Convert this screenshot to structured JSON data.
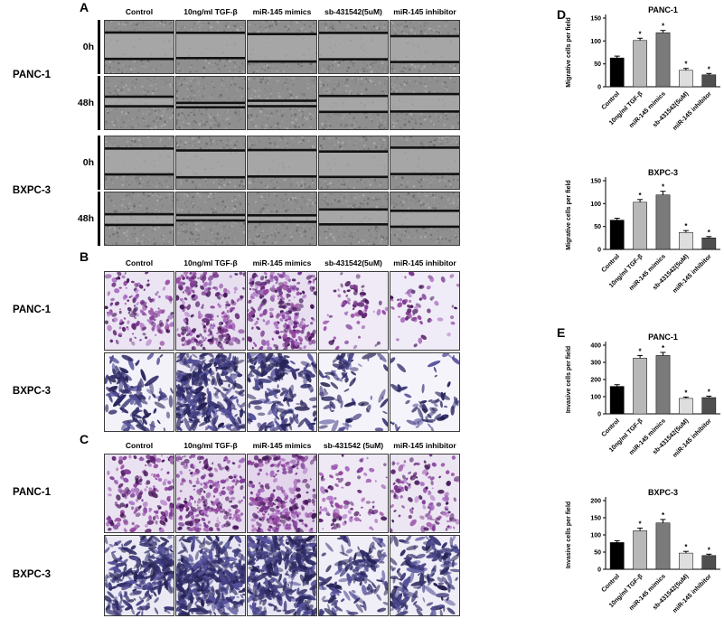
{
  "panels": {
    "A": {
      "label": "A",
      "col_headers": [
        "Control",
        "10ng/ml TGF-β",
        "miR-145 mimics",
        "sb-431542(5uM)",
        "miR-145 inhibitor"
      ],
      "groups": [
        {
          "cell_line": "PANC-1",
          "rows": [
            {
              "time": "0h",
              "gaps": [
                0.5,
                0.48,
                0.52,
                0.5,
                0.49
              ]
            },
            {
              "time": "48h",
              "gaps": [
                0.18,
                0.08,
                0.1,
                0.3,
                0.33
              ]
            }
          ]
        },
        {
          "cell_line": "BXPC-3",
          "rows": [
            {
              "time": "0h",
              "gaps": [
                0.49,
                0.51,
                0.5,
                0.48,
                0.5
              ]
            },
            {
              "time": "48h",
              "gaps": [
                0.2,
                0.1,
                0.12,
                0.28,
                0.3
              ]
            }
          ]
        }
      ]
    },
    "B": {
      "label": "B",
      "col_headers": [
        "Control",
        "10ng/ml TGF-β",
        "miR-145 mimics",
        "sb-431542(5uM)",
        "miR-145 inhibitor"
      ],
      "rows": [
        {
          "cell_line": "PANC-1",
          "tiles": [
            {
              "seed": 11,
              "density": 150,
              "palette": "purple",
              "shape": "round",
              "bg": "#ebe5f3"
            },
            {
              "seed": 12,
              "density": 240,
              "palette": "purple",
              "shape": "round",
              "bg": "#e7dff0"
            },
            {
              "seed": 13,
              "density": 250,
              "palette": "purple",
              "shape": "round",
              "bg": "#e7def0"
            },
            {
              "seed": 14,
              "density": 70,
              "palette": "purple",
              "shape": "round",
              "bg": "#efeaf6"
            },
            {
              "seed": 15,
              "density": 60,
              "palette": "purple",
              "shape": "round",
              "bg": "#f0ecf7"
            }
          ]
        },
        {
          "cell_line": "BXPC-3",
          "tiles": [
            {
              "seed": 21,
              "density": 110,
              "palette": "indigo",
              "shape": "spindle",
              "bg": "#f4f2f9"
            },
            {
              "seed": 22,
              "density": 300,
              "palette": "indigo",
              "shape": "spindle",
              "bg": "#eeeaf5"
            },
            {
              "seed": 23,
              "density": 170,
              "palette": "indigo",
              "shape": "spindle",
              "bg": "#f2eff8"
            },
            {
              "seed": 24,
              "density": 80,
              "palette": "indigo",
              "shape": "spindle",
              "bg": "#f5f3fa"
            },
            {
              "seed": 25,
              "density": 60,
              "palette": "indigo",
              "shape": "spindle",
              "bg": "#f6f4fb"
            }
          ]
        }
      ]
    },
    "C": {
      "label": "C",
      "col_headers": [
        "Control",
        "10ng/ml TGF-β",
        "miR-145 mimics",
        "sb-431542 (5uM)",
        "miR-145 inhibitor"
      ],
      "rows": [
        {
          "cell_line": "PANC-1",
          "tiles": [
            {
              "seed": 31,
              "density": 180,
              "palette": "purple",
              "shape": "round",
              "bg": "#eae2f1"
            },
            {
              "seed": 32,
              "density": 240,
              "palette": "purple",
              "shape": "round",
              "bg": "#e6dcee"
            },
            {
              "seed": 33,
              "density": 270,
              "palette": "purple",
              "shape": "round",
              "bg": "#e3d6ec"
            },
            {
              "seed": 34,
              "density": 100,
              "palette": "purple",
              "shape": "round",
              "bg": "#efe9f5"
            },
            {
              "seed": 35,
              "density": 130,
              "palette": "purple",
              "shape": "round",
              "bg": "#ece6f3"
            }
          ]
        },
        {
          "cell_line": "BXPC-3",
          "tiles": [
            {
              "seed": 41,
              "density": 230,
              "palette": "indigo",
              "shape": "spindle",
              "bg": "#ebe9f4"
            },
            {
              "seed": 42,
              "density": 320,
              "palette": "indigo",
              "shape": "spindle",
              "bg": "#e8e6f2"
            },
            {
              "seed": 43,
              "density": 330,
              "palette": "indigo",
              "shape": "spindle",
              "bg": "#e7e5f1"
            },
            {
              "seed": 44,
              "density": 140,
              "palette": "indigo",
              "shape": "spindle",
              "bg": "#f0eef7"
            },
            {
              "seed": 45,
              "density": 160,
              "palette": "indigo",
              "shape": "spindle",
              "bg": "#efedf6"
            }
          ]
        }
      ]
    },
    "D": {
      "label": "D"
    },
    "E": {
      "label": "E"
    }
  },
  "chart_data": [
    {
      "type": "bar",
      "title": "PANC-1",
      "ylabel": "Migrative cells per field",
      "categories": [
        "Control",
        "10ng/ml TGF-β",
        "miR-145 mimics",
        "sb-431542(5uM)",
        "miR-145 inhibitor"
      ],
      "values": [
        63,
        101,
        118,
        36,
        26
      ],
      "errors": [
        4,
        5,
        5,
        4,
        3
      ],
      "sig": [
        "",
        "*",
        "*",
        "*",
        "*"
      ],
      "ylim": [
        0,
        150
      ],
      "yticks": [
        0,
        50,
        100,
        150
      ]
    },
    {
      "type": "bar",
      "title": "BXPC-3",
      "ylabel": "Migrative cells per field",
      "categories": [
        "Control",
        "10ng/ml TGF-β",
        "miR-145 mimics",
        "sb-431542(5uM)",
        "miR-145 inhibitor"
      ],
      "values": [
        64,
        103,
        119,
        37,
        25
      ],
      "errors": [
        4,
        6,
        8,
        4,
        3
      ],
      "sig": [
        "",
        "*",
        "*",
        "*",
        "*"
      ],
      "ylim": [
        0,
        150
      ],
      "yticks": [
        0,
        50,
        100,
        150
      ]
    },
    {
      "type": "bar",
      "title": "PANC-1",
      "ylabel": "Invasive cells per field",
      "categories": [
        "Control",
        "10ng/ml TGF-β",
        "miR-145 mimics",
        "sb-431542(5uM)",
        "miR-145 inhibitor"
      ],
      "values": [
        160,
        325,
        340,
        90,
        95
      ],
      "errors": [
        10,
        15,
        18,
        8,
        8
      ],
      "sig": [
        "",
        "*",
        "*",
        "*",
        "*"
      ],
      "ylim": [
        0,
        400
      ],
      "yticks": [
        0,
        100,
        200,
        300,
        400
      ]
    },
    {
      "type": "bar",
      "title": "BXPC-3",
      "ylabel": "Invasive cells per field",
      "categories": [
        "Control",
        "10ng/ml TGF-β",
        "miR-145 mimics",
        "sb-431542(5uM)",
        "miR-145 inhibitor"
      ],
      "values": [
        78,
        112,
        135,
        47,
        40
      ],
      "errors": [
        5,
        8,
        10,
        5,
        4
      ],
      "sig": [
        "",
        "*",
        "*",
        "*",
        "*"
      ],
      "ylim": [
        0,
        200
      ],
      "yticks": [
        0,
        50,
        100,
        150,
        200
      ]
    }
  ],
  "bar_colors": [
    "#000000",
    "#b8b8b8",
    "#7a7a7a",
    "#dedede",
    "#4f4f4f"
  ]
}
